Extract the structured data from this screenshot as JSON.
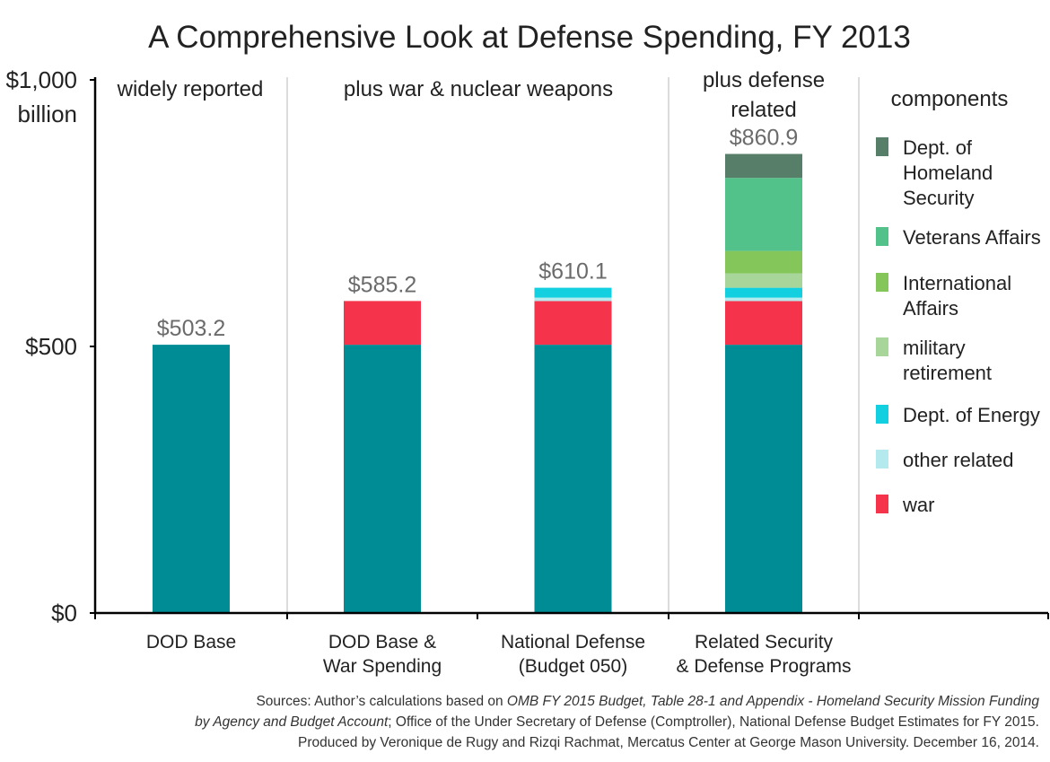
{
  "chart_data": {
    "type": "bar",
    "stacked": true,
    "title": "A Comprehensive Look at Defense Spending,  FY 2013",
    "yaxis": {
      "ylim": [
        0,
        1000
      ],
      "ticks": [
        {
          "value": 0,
          "label": "$0"
        },
        {
          "value": 500,
          "label": "$500"
        },
        {
          "value": 1000,
          "label": "$1,000",
          "label2": "billion"
        }
      ]
    },
    "sections": [
      {
        "lines": [
          "widely reported"
        ]
      },
      {
        "lines": [
          "plus war & nuclear weapons"
        ]
      },
      {
        "lines": [
          "plus defense",
          "related"
        ]
      }
    ],
    "categories": [
      {
        "lines": [
          "DOD Base"
        ]
      },
      {
        "lines": [
          "DOD Base &",
          "War Spending"
        ]
      },
      {
        "lines": [
          "National Defense",
          "(Budget 050)"
        ]
      },
      {
        "lines": [
          "Related Security",
          "& Defense Programs"
        ]
      }
    ],
    "totals": [
      "$503.2",
      "$585.2",
      "$610.1",
      "$860.9"
    ],
    "series": [
      {
        "name": "base",
        "color": "#008c94",
        "values": [
          503.2,
          503.2,
          503.2,
          503.2
        ]
      },
      {
        "name": "war",
        "color": "#f5334a",
        "values": [
          0,
          82.0,
          82.0,
          82.0
        ]
      },
      {
        "name": "other related",
        "color": "#b4e9ee",
        "values": [
          0,
          0,
          6.4,
          6.4
        ]
      },
      {
        "name": "Dept. of Energy",
        "color": "#12d0e0",
        "values": [
          0,
          0,
          18.5,
          18.5
        ]
      },
      {
        "name": "military retirement",
        "color": "#a8d69a",
        "values": [
          0,
          0,
          0,
          27
        ]
      },
      {
        "name": "International Affairs",
        "color": "#84c65a",
        "values": [
          0,
          0,
          0,
          42
        ]
      },
      {
        "name": "Veterans Affairs",
        "color": "#52c28a",
        "values": [
          0,
          0,
          0,
          137
        ]
      },
      {
        "name": "Dept. of Homeland Security",
        "color": "#567e68",
        "values": [
          0,
          0,
          0,
          45
        ]
      }
    ],
    "legend": {
      "title": "components",
      "placement": "right",
      "items": [
        {
          "lines": [
            "Dept. of",
            "Homeland",
            "Security"
          ],
          "color": "#567e68"
        },
        {
          "lines": [
            "Veterans Affairs"
          ],
          "color": "#52c28a"
        },
        {
          "lines": [
            "International",
            "Affairs"
          ],
          "color": "#84c65a"
        },
        {
          "lines": [
            "military",
            "retirement"
          ],
          "color": "#a8d69a"
        },
        {
          "lines": [
            "Dept. of Energy"
          ],
          "color": "#12d0e0"
        },
        {
          "lines": [
            "other related"
          ],
          "color": "#b4e9ee"
        },
        {
          "lines": [
            "war"
          ],
          "color": "#f5334a"
        }
      ]
    }
  },
  "sources": {
    "line1_plain": "Sources: Author’s calculations based on ",
    "line1_italic": "OMB FY 2015 Budget, Table 28-1 and Appendix - Homeland Security Mission Funding",
    "line2_italic": "by Agency and Budget Account",
    "line2_plain": "; Office of the Under Secretary of Defense (Comptroller), National Defense Budget Estimates for FY 2015.",
    "line3": "Produced by Veronique de Rugy and Rizqi Rachmat, Mercatus Center at George Mason University. December 16, 2014."
  }
}
